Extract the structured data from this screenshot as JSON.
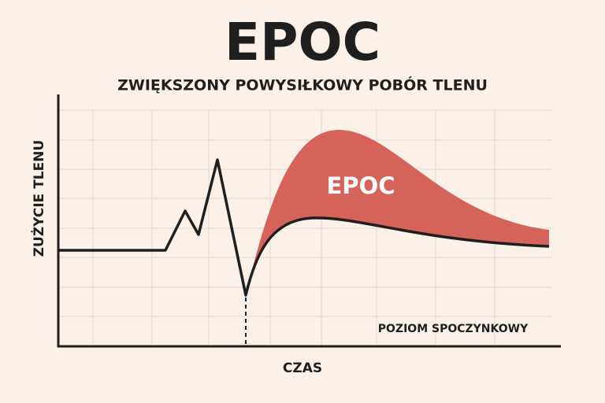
{
  "header": {
    "title": "EPOC",
    "subtitle": "ZWIĘKSZONY POWYSIŁKOWY POBÓR TLENU"
  },
  "diagram": {
    "y_axis_label": "ZUŻYCIE TLENU",
    "x_axis_label": "CZAS",
    "area_label": "EPOC",
    "baseline_label": "POZIOM SPOCZYNKOWY"
  }
}
